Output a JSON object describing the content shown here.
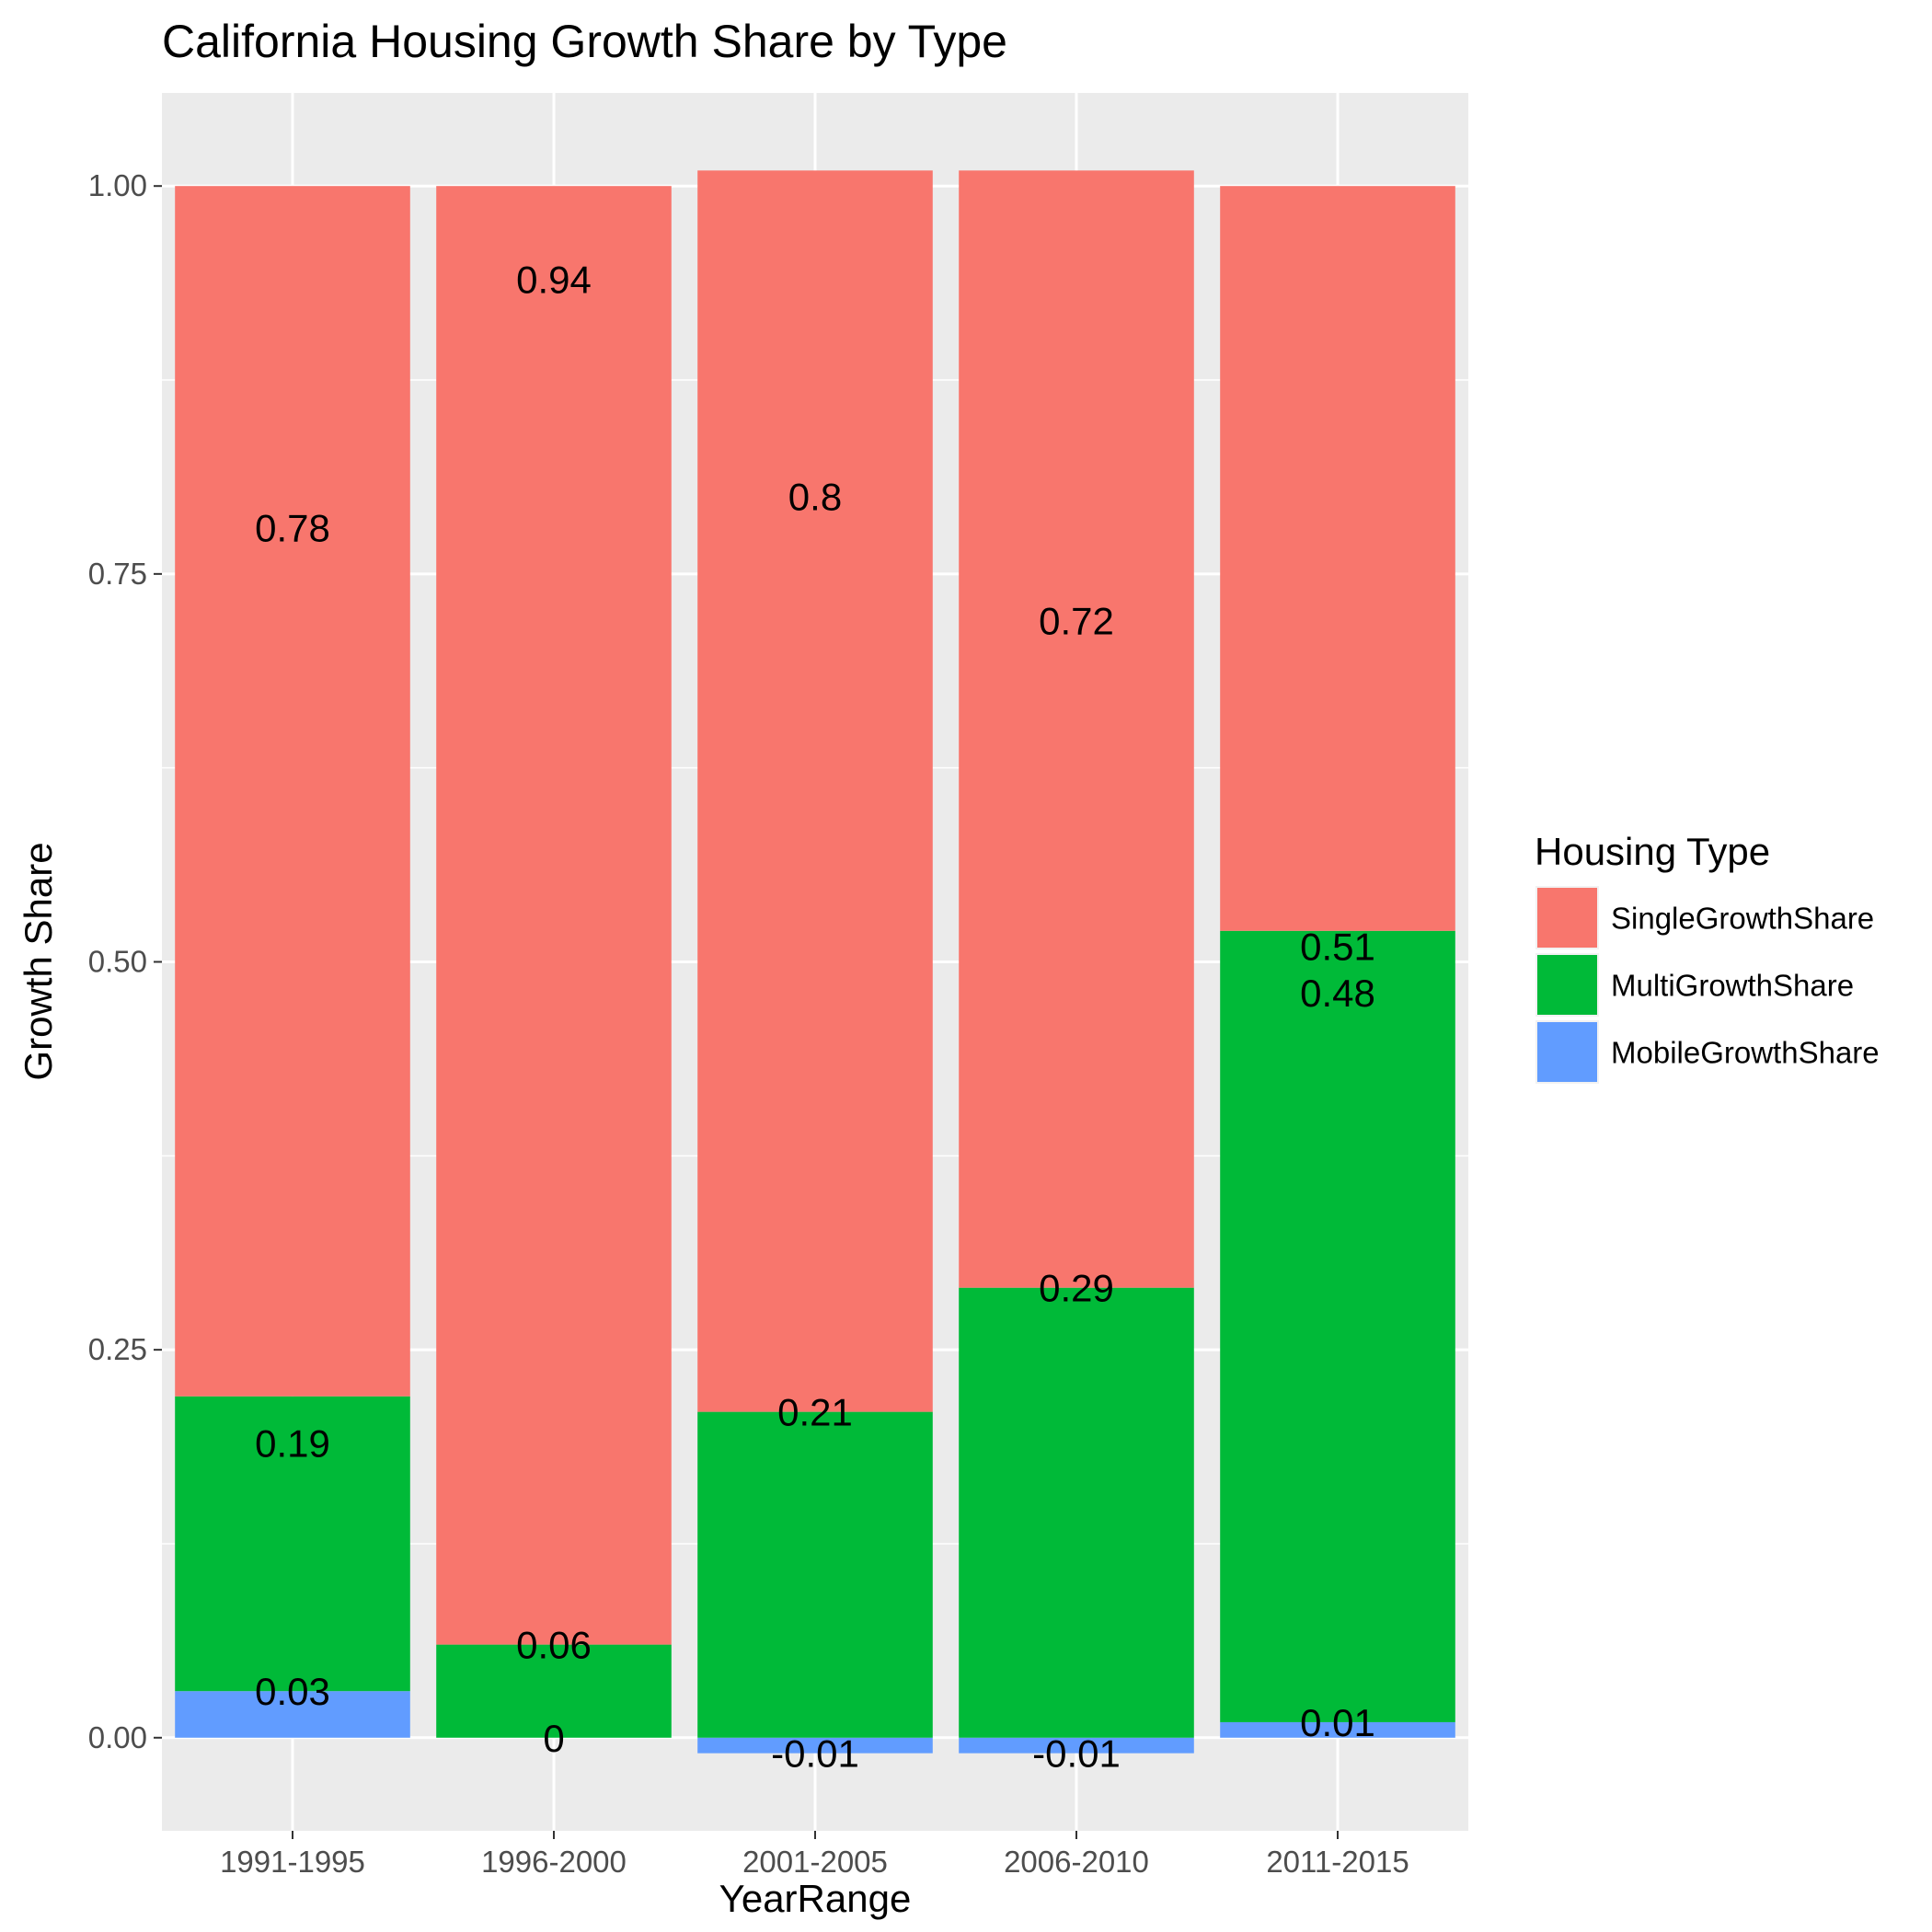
{
  "chart_data": {
    "type": "bar",
    "stacked": true,
    "title": "California Housing Growth Share by Type",
    "xlabel": "YearRange",
    "ylabel": "Growth Share",
    "categories": [
      "1991-1995",
      "1996-2000",
      "2001-2005",
      "2006-2010",
      "2011-2015"
    ],
    "ylim": [
      -0.06,
      1.06
    ],
    "yticks": [
      0.0,
      0.25,
      0.5,
      0.75,
      1.0
    ],
    "ytick_labels": [
      "0.00",
      "0.25",
      "0.50",
      "0.75",
      "1.00"
    ],
    "grid": true,
    "legend": {
      "title": "Housing Type",
      "position": "right"
    },
    "series": [
      {
        "name": "SingleGrowthShare",
        "color": "#F8766D",
        "values": [
          0.78,
          0.94,
          0.8,
          0.72,
          0.48
        ],
        "labels": [
          "0.78",
          "0.94",
          "0.8",
          "0.72",
          "0.48"
        ]
      },
      {
        "name": "MultiGrowthShare",
        "color": "#00BA38",
        "values": [
          0.19,
          0.06,
          0.21,
          0.29,
          0.51
        ],
        "labels": [
          "0.19",
          "0.06",
          "0.21",
          "0.29",
          "0.51"
        ]
      },
      {
        "name": "MobileGrowthShare",
        "color": "#619CFF",
        "values": [
          0.03,
          0,
          -0.01,
          -0.01,
          0.01
        ],
        "labels": [
          "0.03",
          "0",
          "-0.01",
          "-0.01",
          "0.01"
        ]
      }
    ]
  }
}
